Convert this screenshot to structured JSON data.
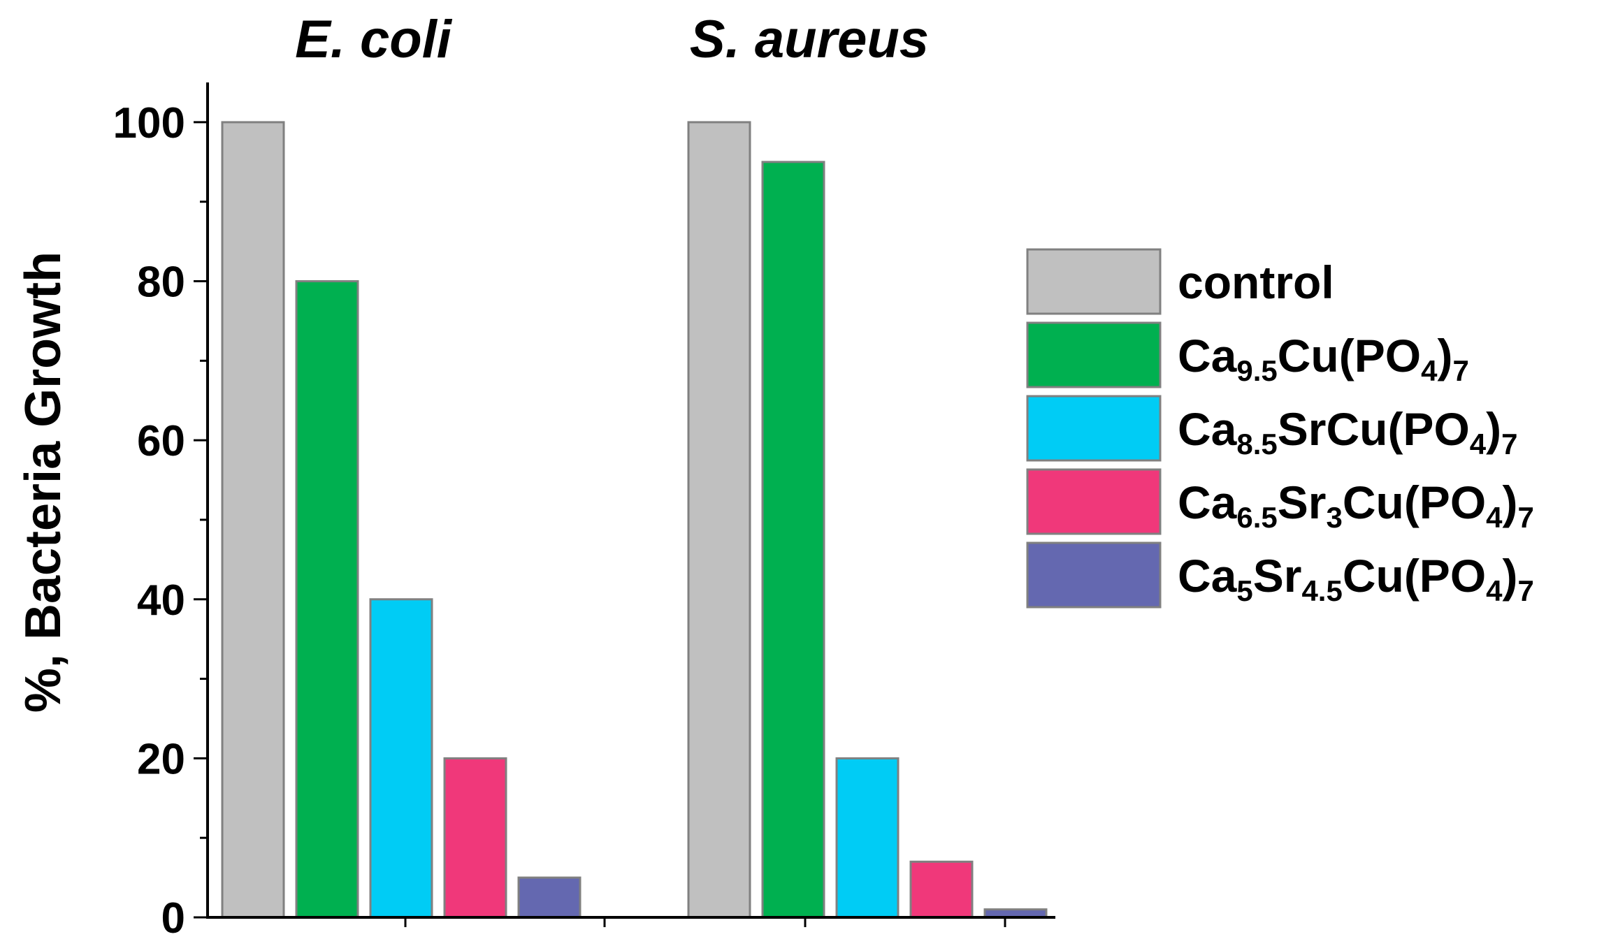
{
  "chart_data": {
    "type": "bar",
    "categories": [
      "E. coli",
      "S. aureus"
    ],
    "ylabel": "%, Bacteria Growth",
    "xlabel": "",
    "ylim": [
      0,
      105
    ],
    "yticks": [
      "0",
      "20",
      "40",
      "60",
      "80",
      "100"
    ],
    "grid": false,
    "legend_position": "right",
    "series": [
      {
        "name": "control",
        "name_parts": [
          {
            "t": "control",
            "sub": false
          }
        ],
        "color": "#c0c0c0",
        "values": [
          100,
          100
        ]
      },
      {
        "name": "Ca9.5Cu(PO4)7",
        "name_parts": [
          {
            "t": "Ca",
            "sub": false
          },
          {
            "t": "9.5",
            "sub": true
          },
          {
            "t": "Cu(PO",
            "sub": false
          },
          {
            "t": "4",
            "sub": true
          },
          {
            "t": ")",
            "sub": false
          },
          {
            "t": "7",
            "sub": true
          }
        ],
        "color": "#00b050",
        "values": [
          80,
          95
        ]
      },
      {
        "name": "Ca8.5SrCu(PO4)7",
        "name_parts": [
          {
            "t": "Ca",
            "sub": false
          },
          {
            "t": "8.5",
            "sub": true
          },
          {
            "t": "SrCu(PO",
            "sub": false
          },
          {
            "t": "4",
            "sub": true
          },
          {
            "t": ")",
            "sub": false
          },
          {
            "t": "7",
            "sub": true
          }
        ],
        "color": "#00ccf5",
        "values": [
          40,
          20
        ]
      },
      {
        "name": "Ca6.5Sr3Cu(PO4)7",
        "name_parts": [
          {
            "t": "Ca",
            "sub": false
          },
          {
            "t": "6.5",
            "sub": true
          },
          {
            "t": "Sr",
            "sub": false
          },
          {
            "t": "3",
            "sub": true
          },
          {
            "t": "Cu(PO",
            "sub": false
          },
          {
            "t": "4",
            "sub": true
          },
          {
            "t": ")",
            "sub": false
          },
          {
            "t": "7",
            "sub": true
          }
        ],
        "color": "#f0387a",
        "values": [
          20,
          7
        ]
      },
      {
        "name": "Ca5Sr4.5Cu(PO4)7",
        "name_parts": [
          {
            "t": "Ca",
            "sub": false
          },
          {
            "t": "5",
            "sub": true
          },
          {
            "t": "Sr",
            "sub": false
          },
          {
            "t": "4.5",
            "sub": true
          },
          {
            "t": "Cu(PO",
            "sub": false
          },
          {
            "t": "4",
            "sub": true
          },
          {
            "t": ")",
            "sub": false
          },
          {
            "t": "7",
            "sub": true
          }
        ],
        "color": "#6468b0",
        "values": [
          5,
          1
        ]
      }
    ]
  }
}
